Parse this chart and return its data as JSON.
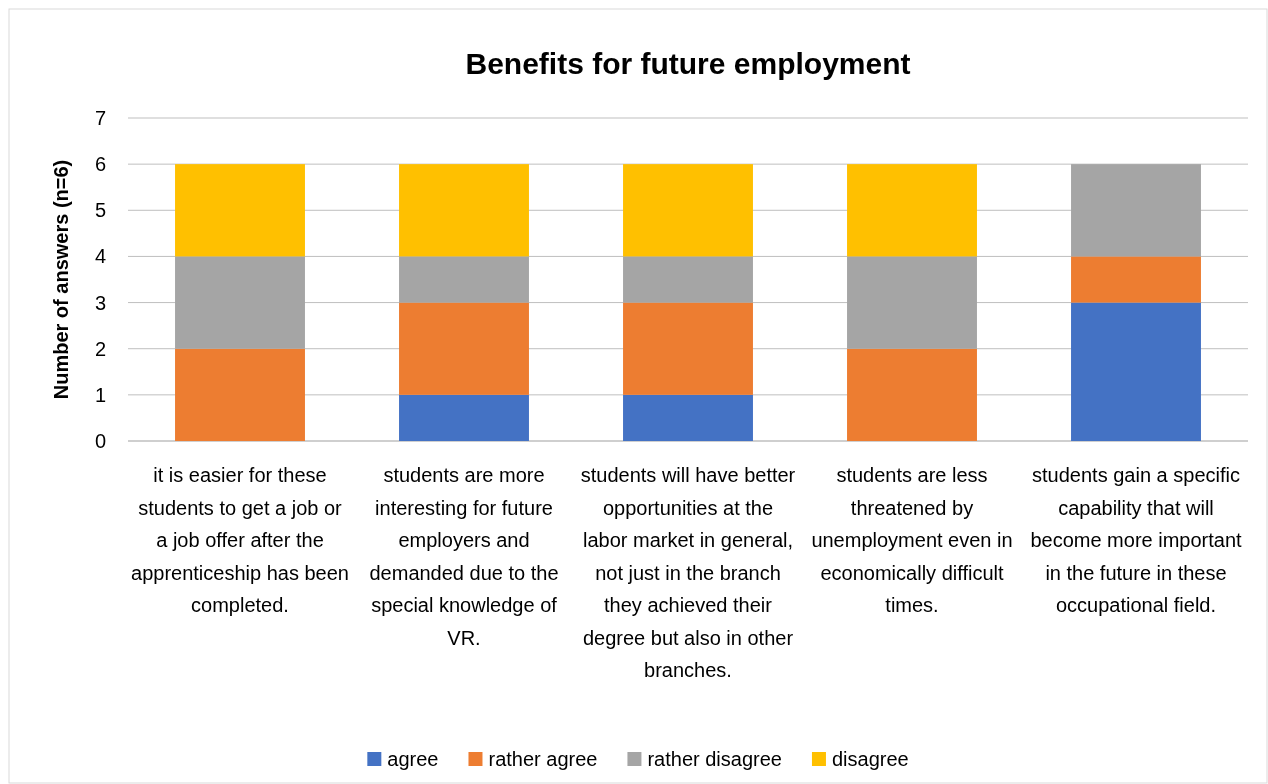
{
  "chart_data": {
    "type": "bar",
    "title": "Benefits for future employment",
    "ylabel": "Number of answers (n=6)",
    "categories": [
      "it is easier for these students to get a job or a job offer after the apprenticeship has been completed.",
      "students are more interesting for future employers and demanded due to the special knowledge of VR.",
      "students will have better opportunities at the labor market in general, not just in the branch they achieved their degree but also in other branches.",
      "students are less threatened by unemployment even in economically difficult times.",
      "students gain a specific capability that will become more important in the future in these occupational field."
    ],
    "series": [
      {
        "name": "agree",
        "color": "#4472c4",
        "values": [
          0,
          1,
          1,
          0,
          3
        ]
      },
      {
        "name": "rather agree",
        "color": "#ed7d31",
        "values": [
          2,
          2,
          2,
          2,
          1
        ]
      },
      {
        "name": "rather disagree",
        "color": "#a5a5a5",
        "values": [
          2,
          1,
          1,
          2,
          2
        ]
      },
      {
        "name": "disagree",
        "color": "#ffc000",
        "values": [
          2,
          2,
          2,
          2,
          0
        ]
      }
    ],
    "stacked": true,
    "ylim": [
      0,
      7
    ],
    "yticks": [
      0,
      1,
      2,
      3,
      4,
      5,
      6,
      7
    ],
    "grid": "y",
    "legend": "bottom"
  }
}
